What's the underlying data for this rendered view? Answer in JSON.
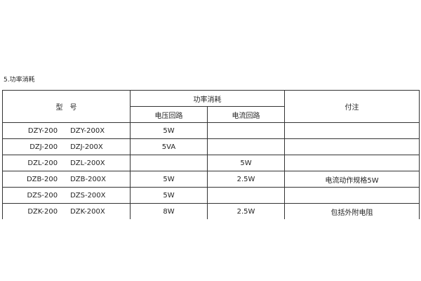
{
  "section_title": "5.功率消耗",
  "table": {
    "headers": {
      "model": "型　号",
      "power": "功率消耗",
      "voltage_circuit": "电压回路",
      "current_circuit": "电流回路",
      "note": "付注"
    },
    "rows": [
      {
        "model_a": "DZY-200",
        "model_b": "DZY-200X",
        "voltage": "5W",
        "current": "",
        "note": ""
      },
      {
        "model_a": "DZJ-200",
        "model_b": "DZJ-200X",
        "voltage": "5VA",
        "current": "",
        "note": ""
      },
      {
        "model_a": "DZL-200",
        "model_b": "DZL-200X",
        "voltage": "",
        "current": "5W",
        "note": ""
      },
      {
        "model_a": "DZB-200",
        "model_b": "DZB-200X",
        "voltage": "5W",
        "current": "2.5W",
        "note": "电流动作规格5W"
      },
      {
        "model_a": "DZS-200",
        "model_b": "DZS-200X",
        "voltage": "5W",
        "current": "",
        "note": ""
      },
      {
        "model_a": "DZK-200",
        "model_b": "DZK-200X",
        "voltage": "8W",
        "current": "2.5W",
        "note": "包括外附电阻"
      }
    ]
  }
}
